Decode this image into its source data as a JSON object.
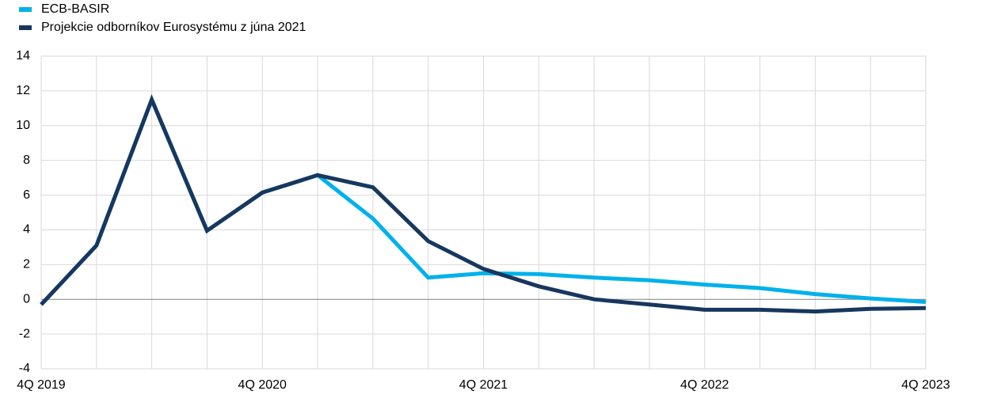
{
  "chart_data": {
    "type": "line",
    "categories": [
      "4Q 2019",
      null,
      null,
      null,
      "4Q 2020",
      null,
      null,
      null,
      "4Q 2021",
      null,
      null,
      null,
      "4Q 2022",
      null,
      null,
      null,
      "4Q 2023"
    ],
    "series": [
      {
        "name": "ECB-BASIR",
        "color": "#00b1ea",
        "values": [
          -0.3,
          3.1,
          11.5,
          3.95,
          6.15,
          7.15,
          4.65,
          1.25,
          1.5,
          1.45,
          1.25,
          1.1,
          0.85,
          0.65,
          0.3,
          0.05,
          -0.15
        ]
      },
      {
        "name": "Projekcie odborníkov Eurosystému z júna 2021",
        "color": "#17375e",
        "values": [
          -0.3,
          3.1,
          11.5,
          3.95,
          6.15,
          7.15,
          6.45,
          3.35,
          1.75,
          0.75,
          0.0,
          -0.3,
          -0.6,
          -0.6,
          -0.7,
          -0.55,
          -0.5
        ]
      }
    ],
    "ylim": [
      -4,
      14
    ],
    "yticks": [
      -4,
      -2,
      0,
      2,
      4,
      6,
      8,
      10,
      12,
      14
    ],
    "grid": true,
    "legend": "top-left"
  }
}
